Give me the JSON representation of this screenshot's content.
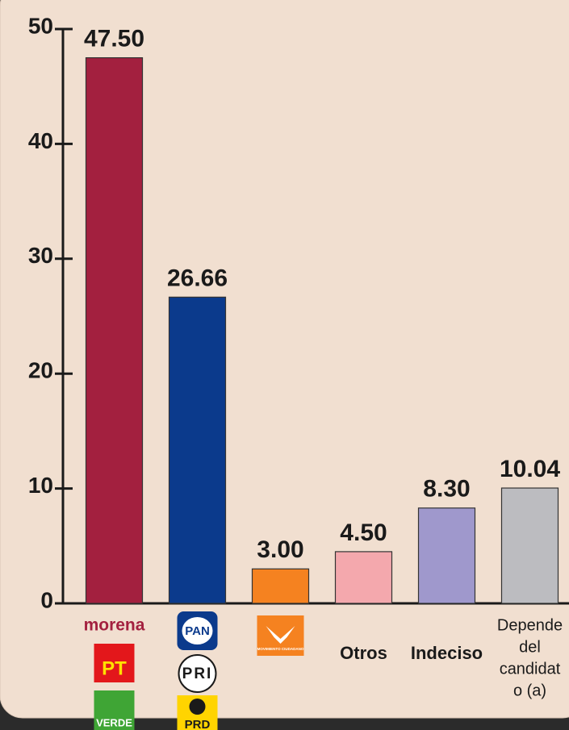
{
  "chart_data": {
    "type": "bar",
    "categories": [
      null,
      null,
      null,
      "Otros",
      "Indeciso",
      [
        "Depende",
        "del",
        "candidat",
        "o (a)"
      ]
    ],
    "logos": [
      [
        "morena",
        "PT",
        "VERDE"
      ],
      [
        "PAN",
        "PRI",
        "PRD"
      ],
      [
        "MOVIMIENTO CIUDADANO"
      ]
    ],
    "values": [
      47.5,
      26.66,
      3,
      4.5,
      8.3,
      10.04
    ],
    "value_labels": [
      "47.50",
      "26.66",
      "3.00",
      "4.50",
      "8.30",
      "10.04"
    ],
    "colors": [
      "#a3203f",
      "#0b3a8c",
      "#f58220",
      "#f4a8ad",
      "#9f98cc",
      "#bcbcc0"
    ],
    "ylim": [
      0,
      50
    ],
    "yticks": [
      0,
      10,
      20,
      30,
      40,
      50
    ]
  }
}
